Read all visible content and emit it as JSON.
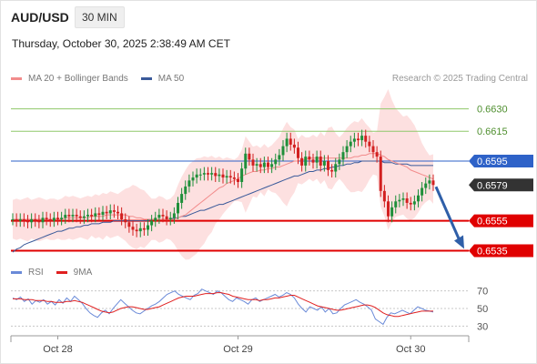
{
  "header": {
    "pair": "AUD/USD",
    "timeframe": "30 MIN"
  },
  "datetime": "Thursday, October 30, 2025 2:38:49 AM CET",
  "legend": {
    "ma20_label": "MA 20 + Bollinger Bands",
    "ma50_label": "MA 50",
    "credit": "Research © 2025 Trading Central"
  },
  "rsi_legend": {
    "rsi_label": "RSI",
    "ma_label": "9MA"
  },
  "colors": {
    "ma20": "#f28c8c",
    "ma50": "#3a5a9a",
    "band_fill": "#fde0e0",
    "up": "#1f8f3a",
    "down": "#d22020",
    "support": "#e00000",
    "resistance": "#8fc86a",
    "pivot": "#2e62c8",
    "last": "#333333",
    "rsi": "#6a8ad8",
    "rsi_ma": "#e02020",
    "arrow": "#2f5fa8"
  },
  "chart_data": [
    {
      "type": "candlestick",
      "title": "AUD/USD 30 MIN",
      "x_ticks": [
        "Oct 28",
        "Oct 29",
        "Oct 30"
      ],
      "ylim": [
        0.6531,
        0.6645
      ],
      "levels": [
        {
          "value": 0.663,
          "label": "0.6630",
          "kind": "resistance"
        },
        {
          "value": 0.6615,
          "label": "0.6615",
          "kind": "resistance"
        },
        {
          "value": 0.6595,
          "label": "0.6595",
          "kind": "pivot"
        },
        {
          "value": 0.6579,
          "label": "0.6579",
          "kind": "last"
        },
        {
          "value": 0.6555,
          "label": "0.6555",
          "kind": "support"
        },
        {
          "value": 0.6535,
          "label": "0.6535",
          "kind": "support"
        }
      ],
      "closes": [
        0.6556,
        0.6555,
        0.6556,
        0.6555,
        0.6554,
        0.6556,
        0.6555,
        0.6554,
        0.6557,
        0.6556,
        0.6555,
        0.6557,
        0.6556,
        0.6557,
        0.6559,
        0.6558,
        0.6559,
        0.6558,
        0.6557,
        0.6558,
        0.6559,
        0.6558,
        0.656,
        0.6559,
        0.6561,
        0.656,
        0.6562,
        0.6561,
        0.656,
        0.6556,
        0.6554,
        0.6551,
        0.6549,
        0.6548,
        0.655,
        0.6549,
        0.6552,
        0.6555,
        0.6557,
        0.6559,
        0.6558,
        0.6556,
        0.6557,
        0.656,
        0.6567,
        0.6573,
        0.6578,
        0.6582,
        0.6584,
        0.6586,
        0.6586,
        0.6587,
        0.6586,
        0.6587,
        0.6585,
        0.6586,
        0.6584,
        0.6585,
        0.6584,
        0.6583,
        0.6581,
        0.659,
        0.66,
        0.6596,
        0.6592,
        0.6593,
        0.6591,
        0.6594,
        0.6591,
        0.6593,
        0.6596,
        0.6599,
        0.6605,
        0.661,
        0.6606,
        0.6604,
        0.6597,
        0.6592,
        0.6598,
        0.6596,
        0.6594,
        0.6598,
        0.6592,
        0.6595,
        0.6589,
        0.6588,
        0.6593,
        0.6596,
        0.6601,
        0.6605,
        0.6608,
        0.661,
        0.6609,
        0.6612,
        0.6608,
        0.6605,
        0.6601,
        0.6598,
        0.6575,
        0.6568,
        0.6558,
        0.6564,
        0.6568,
        0.6569,
        0.657,
        0.6567,
        0.6566,
        0.6568,
        0.6572,
        0.6577,
        0.658,
        0.6582,
        0.6579
      ],
      "ma20": [
        0.6556,
        0.6556,
        0.6556,
        0.6556,
        0.6556,
        0.6556,
        0.6556,
        0.6556,
        0.6556,
        0.6556,
        0.6556,
        0.6556,
        0.6556,
        0.6556,
        0.6557,
        0.6557,
        0.6557,
        0.6557,
        0.6557,
        0.6557,
        0.6557,
        0.6558,
        0.6558,
        0.6558,
        0.6558,
        0.6559,
        0.6559,
        0.6559,
        0.6559,
        0.6559,
        0.6559,
        0.6558,
        0.6558,
        0.6557,
        0.6557,
        0.6556,
        0.6556,
        0.6556,
        0.6556,
        0.6556,
        0.6556,
        0.6556,
        0.6556,
        0.6556,
        0.6557,
        0.6558,
        0.6559,
        0.6561,
        0.6563,
        0.6565,
        0.6567,
        0.6569,
        0.6571,
        0.6573,
        0.6575,
        0.6577,
        0.6578,
        0.658,
        0.6581,
        0.6582,
        0.6583,
        0.6585,
        0.6586,
        0.6587,
        0.6588,
        0.6588,
        0.6589,
        0.6589,
        0.659,
        0.659,
        0.6591,
        0.6591,
        0.6592,
        0.6593,
        0.6594,
        0.6595,
        0.6595,
        0.6596,
        0.6596,
        0.6597,
        0.6597,
        0.6597,
        0.6597,
        0.6597,
        0.6597,
        0.6597,
        0.6597,
        0.6597,
        0.6597,
        0.6597,
        0.6597,
        0.6598,
        0.6598,
        0.6599,
        0.6599,
        0.66,
        0.66,
        0.66,
        0.6599,
        0.6598,
        0.6596,
        0.6595,
        0.6594,
        0.6593,
        0.6592,
        0.6591,
        0.6589,
        0.6588,
        0.6587,
        0.6586,
        0.6585,
        0.6584,
        0.6583
      ],
      "ma50": [
        0.6534,
        0.6536,
        0.6537,
        0.6539,
        0.654,
        0.6541,
        0.6542,
        0.6543,
        0.6544,
        0.6545,
        0.6546,
        0.6547,
        0.6548,
        0.6548,
        0.6549,
        0.655,
        0.655,
        0.6551,
        0.6551,
        0.6552,
        0.6552,
        0.6553,
        0.6553,
        0.6553,
        0.6554,
        0.6554,
        0.6554,
        0.6555,
        0.6555,
        0.6555,
        0.6555,
        0.6555,
        0.6555,
        0.6555,
        0.6555,
        0.6555,
        0.6555,
        0.6556,
        0.6556,
        0.6556,
        0.6556,
        0.6556,
        0.6556,
        0.6557,
        0.6557,
        0.6558,
        0.6558,
        0.6559,
        0.656,
        0.6561,
        0.6562,
        0.6562,
        0.6563,
        0.6564,
        0.6565,
        0.6566,
        0.6566,
        0.6567,
        0.6568,
        0.6569,
        0.657,
        0.6571,
        0.6572,
        0.6573,
        0.6574,
        0.6575,
        0.6576,
        0.6577,
        0.6578,
        0.6579,
        0.658,
        0.6581,
        0.6582,
        0.6583,
        0.6584,
        0.6585,
        0.6585,
        0.6586,
        0.6587,
        0.6588,
        0.6588,
        0.6589,
        0.6589,
        0.659,
        0.659,
        0.6591,
        0.6591,
        0.6592,
        0.6592,
        0.6593,
        0.6593,
        0.6594,
        0.6594,
        0.6595,
        0.6595,
        0.6595,
        0.6595,
        0.6595,
        0.6595,
        0.6594,
        0.6594,
        0.6594,
        0.6593,
        0.6593,
        0.6593,
        0.6593,
        0.6592,
        0.6592,
        0.6592,
        0.6592,
        0.6592,
        0.6592,
        0.6592
      ],
      "band_upper_offset": 0.0013,
      "forecast_target": 0.6535
    },
    {
      "type": "line",
      "title": "RSI",
      "ylim": [
        20,
        80
      ],
      "y_ticks": [
        70,
        50,
        30
      ],
      "series": [
        {
          "name": "RSI",
          "values": [
            62,
            60,
            63,
            58,
            61,
            55,
            59,
            57,
            60,
            55,
            58,
            54,
            60,
            56,
            62,
            58,
            64,
            60,
            56,
            50,
            45,
            42,
            40,
            45,
            48,
            44,
            50,
            55,
            60,
            56,
            52,
            48,
            45,
            44,
            47,
            50,
            53,
            55,
            58,
            62,
            66,
            68,
            70,
            66,
            64,
            62,
            60,
            65,
            67,
            72,
            70,
            68,
            66,
            70,
            68,
            64,
            60,
            58,
            62,
            60,
            58,
            55,
            60,
            62,
            58,
            60,
            62,
            64,
            66,
            63,
            65,
            68,
            66,
            62,
            55,
            50,
            46,
            52,
            50,
            48,
            52,
            46,
            50,
            44,
            45,
            50,
            54,
            56,
            58,
            60,
            57,
            55,
            52,
            48,
            38,
            35,
            32,
            40,
            45,
            44,
            46,
            48,
            46,
            44,
            48,
            52,
            50,
            48,
            47,
            46
          ]
        },
        {
          "name": "9MA",
          "values": [
            61,
            61,
            61,
            60,
            60,
            60,
            59,
            59,
            59,
            58,
            58,
            57,
            57,
            57,
            58,
            58,
            59,
            58,
            57,
            55,
            53,
            51,
            49,
            47,
            46,
            45,
            46,
            48,
            50,
            51,
            52,
            52,
            51,
            50,
            49,
            49,
            50,
            51,
            52,
            54,
            56,
            58,
            60,
            62,
            63,
            64,
            64,
            64,
            65,
            66,
            67,
            67,
            67,
            68,
            68,
            67,
            66,
            64,
            63,
            62,
            61,
            60,
            60,
            60,
            59,
            60,
            60,
            61,
            62,
            62,
            63,
            64,
            65,
            65,
            63,
            61,
            59,
            57,
            55,
            53,
            52,
            51,
            50,
            49,
            48,
            48,
            49,
            50,
            51,
            52,
            53,
            54,
            54,
            53,
            51,
            48,
            45,
            43,
            42,
            41,
            41,
            42,
            43,
            44,
            45,
            46,
            47,
            47,
            47,
            47
          ]
        }
      ]
    }
  ]
}
